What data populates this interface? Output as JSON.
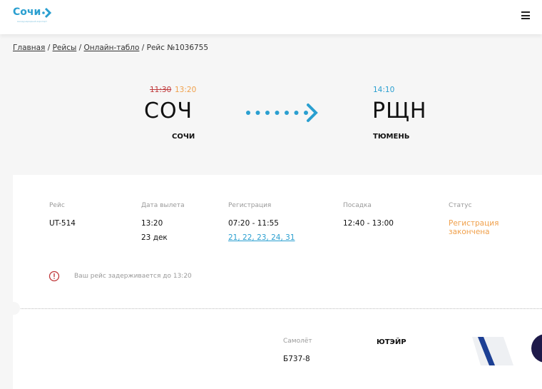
{
  "header": {
    "logo": "Сочи",
    "logo_sub": "международный аэропорт",
    "menu_icon": "hamburger-icon"
  },
  "breadcrumb": [
    {
      "label": "Главная"
    },
    {
      "label": "Рейсы"
    },
    {
      "label": "Онлайн-табло"
    },
    {
      "label": "Рейс №1036755"
    }
  ],
  "route": {
    "dep_time_old": "11:30",
    "dep_time_new": "13:20",
    "dep_code": "СОЧ",
    "dep_city": "СОЧИ",
    "arr_time": "14:10",
    "arr_code": "РЩН",
    "arr_city": "ТЮМЕНЬ"
  },
  "details": {
    "flight_label": "Рейс",
    "flight": "UT-514",
    "date_label": "Дата вылета",
    "date_time": "13:20",
    "date_day": "23 дек",
    "reg_label": "Регистрация",
    "reg_time": "07:20 - 11:55",
    "reg_desks": "21, 22, 23, 24, 31",
    "boarding_label": "Посадка",
    "boarding": "12:40 - 13:00",
    "status_label": "Статус",
    "status": "Регистрация закончена"
  },
  "notice": "Ваш рейс задерживается до 13:20",
  "aircraft": {
    "label": "Самолёт",
    "model": "Б737-8",
    "airline": "ЮТЭЙР"
  },
  "colors": {
    "accent": "#2a9fd0",
    "delay_old": "#c0393b",
    "delay_new": "#f0a04b",
    "status": "#f0a04b"
  }
}
